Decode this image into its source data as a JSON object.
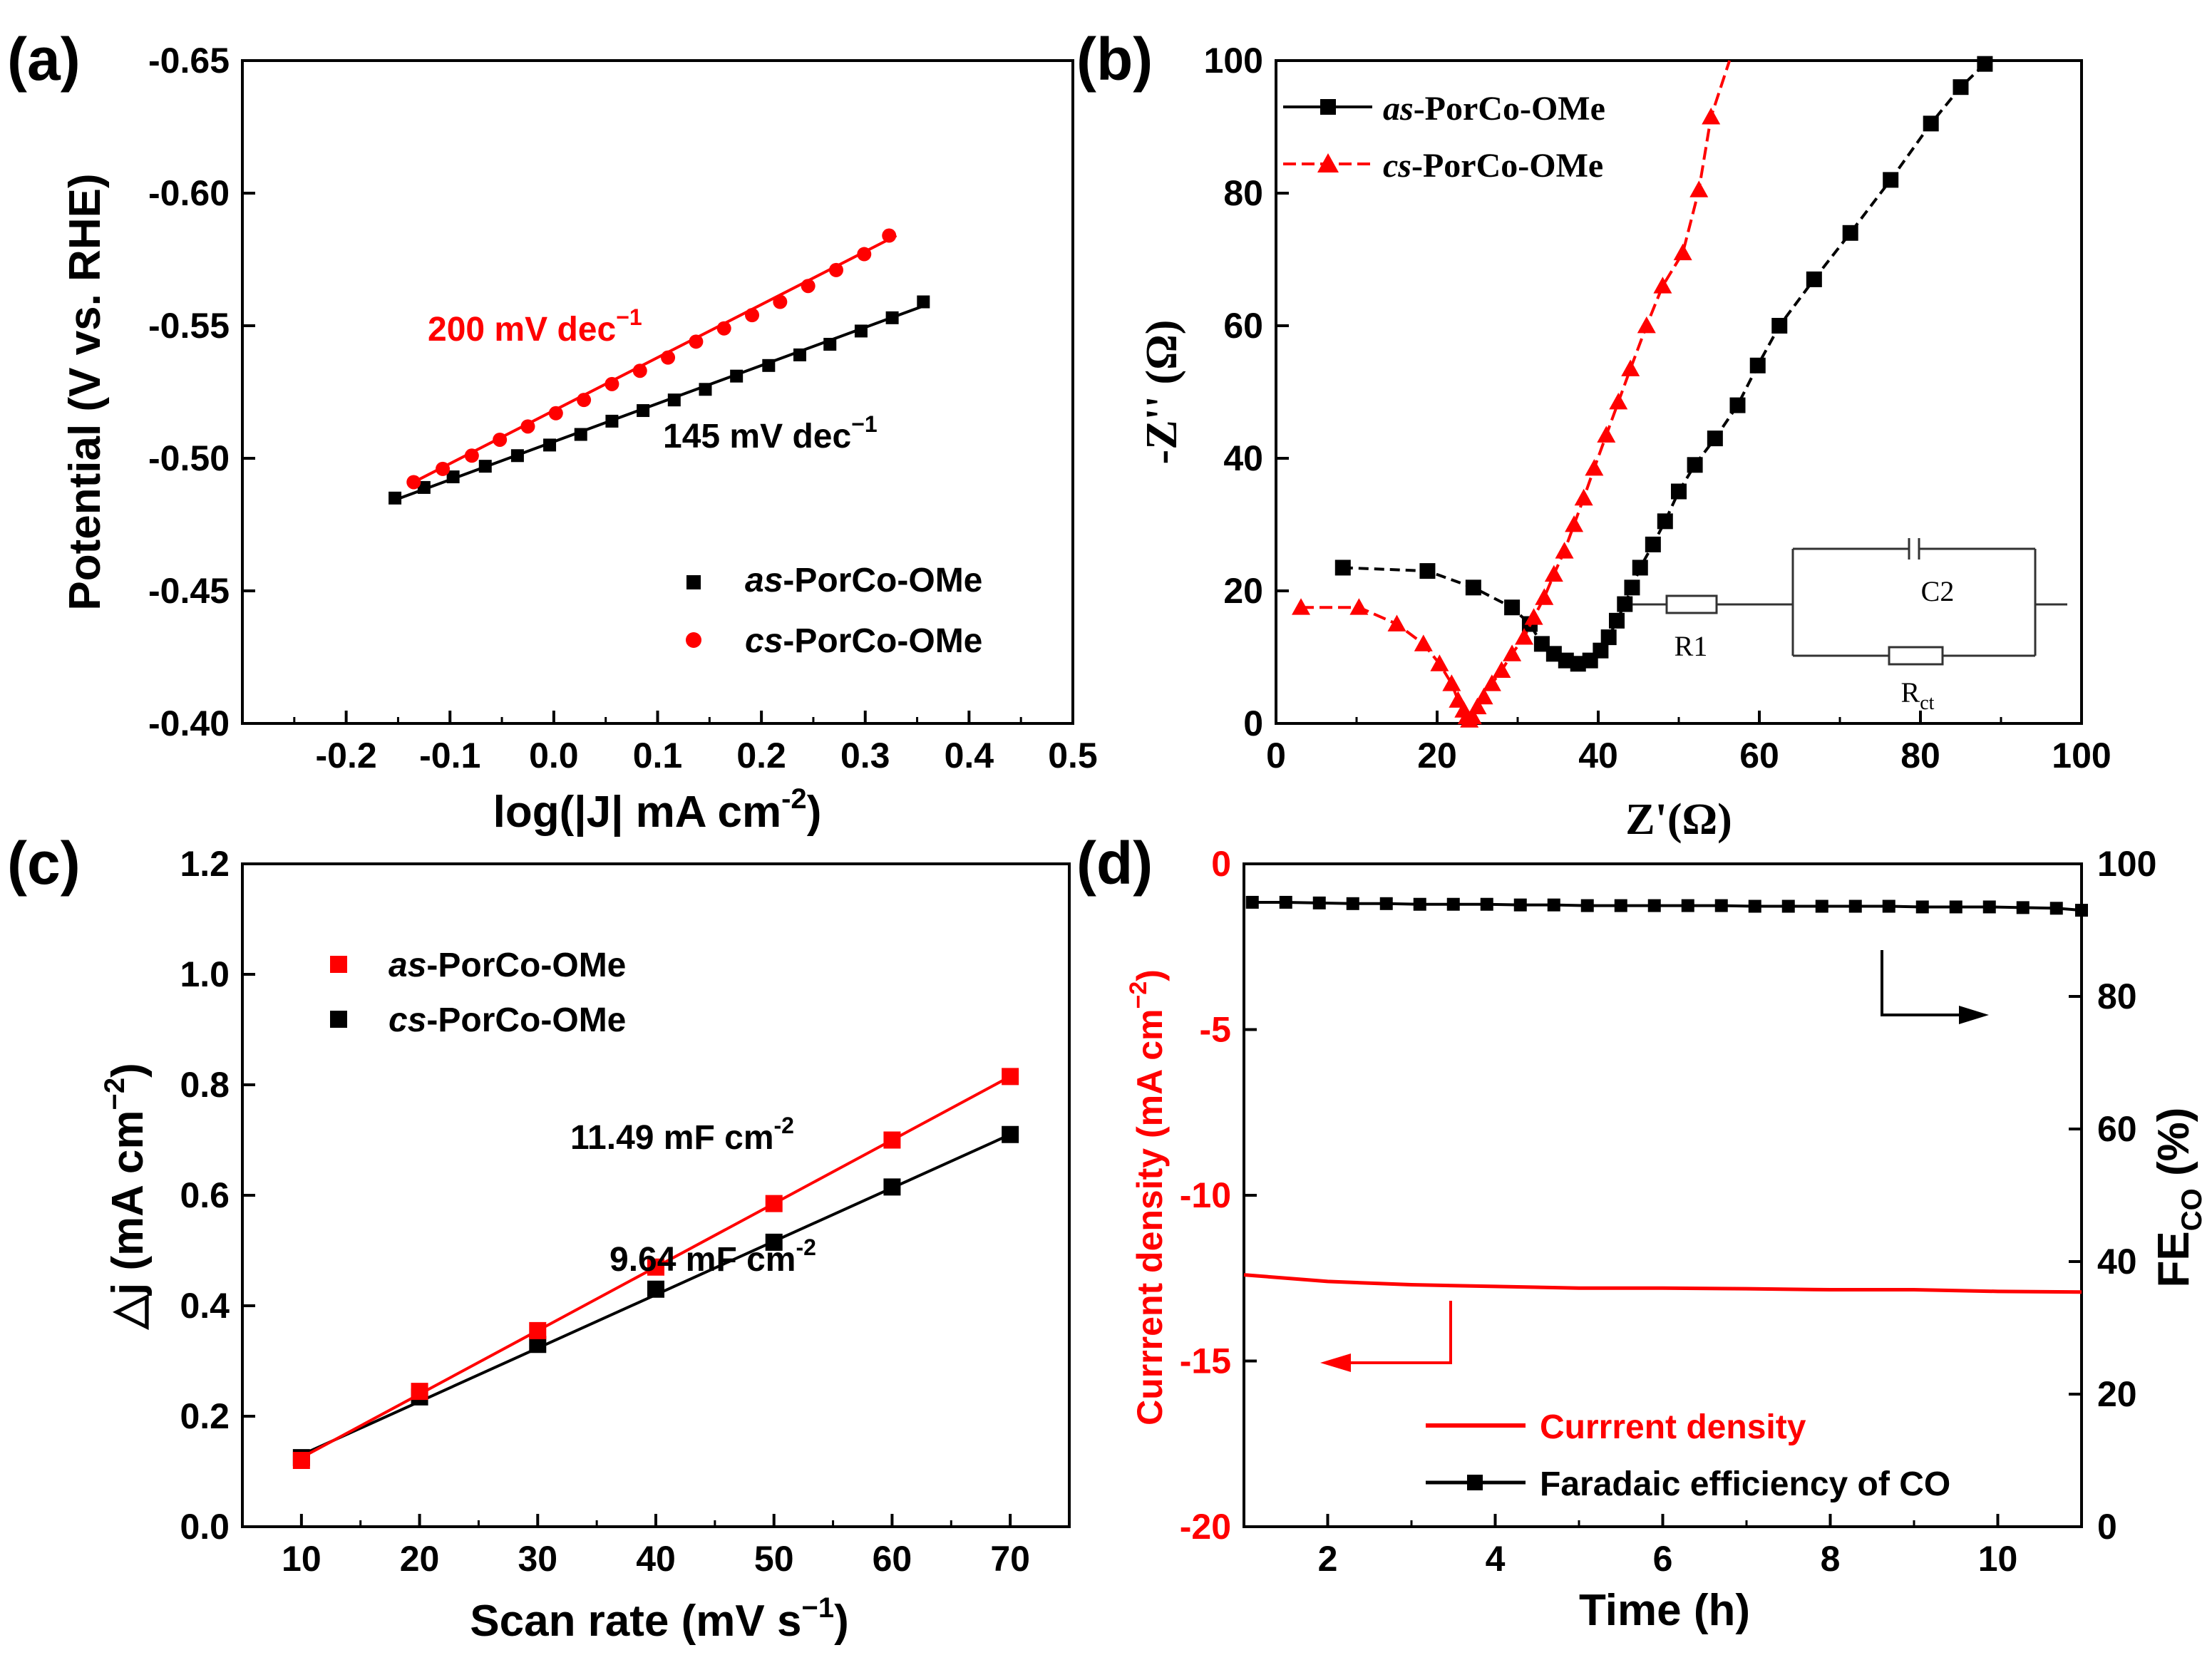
{
  "panel_letters": [
    "(a)",
    "(b)",
    "(c)",
    "(d)"
  ],
  "colors": {
    "black": "#000000",
    "red": "#ff0000"
  },
  "chart_data": [
    {
      "panel": "(a)",
      "type": "scatter",
      "xlabel": "log(|J| mA cm",
      "xlabel_sup": "-2",
      "xlabel_tail": ")",
      "ylabel": "Potential (V vs. RHE)",
      "xlim": [
        -0.3,
        0.5
      ],
      "ylim": [
        -0.4,
        -0.65
      ],
      "xticks": [
        "-0.2",
        "-0.1",
        "0.0",
        "0.1",
        "0.2",
        "0.3",
        "0.4",
        "0.5"
      ],
      "xtick_values": [
        -0.2,
        -0.1,
        0.0,
        0.1,
        0.2,
        0.3,
        0.4,
        0.5
      ],
      "yticks": [
        "-0.40",
        "-0.45",
        "-0.50",
        "-0.55",
        "-0.60",
        "-0.65"
      ],
      "ytick_values": [
        -0.4,
        -0.45,
        -0.5,
        -0.55,
        -0.6,
        -0.65
      ],
      "series": [
        {
          "name_italic": "as",
          "name_rest": "-PorCo-OMe",
          "color": "#000000",
          "marker": "square",
          "x": [
            -0.153,
            -0.125,
            -0.097,
            -0.066,
            -0.035,
            -0.004,
            0.026,
            0.056,
            0.086,
            0.116,
            0.146,
            0.176,
            0.207,
            0.237,
            0.266,
            0.296,
            0.326,
            0.356
          ],
          "y": [
            -0.485,
            -0.489,
            -0.493,
            -0.497,
            -0.501,
            -0.505,
            -0.509,
            -0.514,
            -0.518,
            -0.522,
            -0.526,
            -0.531,
            -0.535,
            -0.539,
            -0.543,
            -0.548,
            -0.553,
            -0.559
          ],
          "fit": {
            "x": [
              -0.155,
              0.36
            ],
            "y": [
              -0.484,
              -0.558
            ]
          }
        },
        {
          "name_italic": "cs",
          "name_rest": "-PorCo-OMe",
          "color": "#ff0000",
          "marker": "circle",
          "x": [
            -0.135,
            -0.107,
            -0.079,
            -0.052,
            -0.025,
            0.002,
            0.029,
            0.056,
            0.083,
            0.11,
            0.137,
            0.164,
            0.191,
            0.218,
            0.245,
            0.272,
            0.299,
            0.323
          ],
          "y": [
            -0.491,
            -0.496,
            -0.501,
            -0.507,
            -0.512,
            -0.517,
            -0.522,
            -0.528,
            -0.533,
            -0.538,
            -0.544,
            -0.549,
            -0.554,
            -0.559,
            -0.565,
            -0.571,
            -0.577,
            -0.584
          ],
          "fit": {
            "x": [
              -0.14,
              0.33
            ],
            "y": [
              -0.49,
              -0.584
            ]
          }
        }
      ],
      "annotations": [
        {
          "text": "200 mV dec",
          "sup": "−1",
          "color": "#ff0000"
        },
        {
          "text": "145 mV dec",
          "sup": "−1",
          "color": "#000000"
        }
      ]
    },
    {
      "panel": "(b)",
      "type": "line",
      "xlabel": "Z'(Ω)",
      "ylabel": "-Z'' (Ω)",
      "xlim": [
        0,
        100
      ],
      "ylim": [
        0,
        100
      ],
      "xticks": [
        "0",
        "20",
        "40",
        "60",
        "80",
        "100"
      ],
      "xtick_values": [
        0,
        20,
        40,
        60,
        80,
        100
      ],
      "yticks": [
        "0",
        "20",
        "40",
        "60",
        "80",
        "100"
      ],
      "ytick_values": [
        0,
        20,
        40,
        60,
        80,
        100
      ],
      "series": [
        {
          "name_italic": "as",
          "name_rest": "-PorCo-OMe",
          "color": "#000000",
          "marker": "square",
          "x": [
            8.3,
            18.8,
            24.5,
            29.3,
            31.5,
            33,
            34.5,
            36,
            37.5,
            39,
            40.3,
            41.3,
            42.3,
            43.3,
            44.2,
            45.2,
            46.8,
            48.3,
            50,
            52,
            54.5,
            57.3,
            59.8,
            62.5,
            66.8,
            71.3,
            76.3,
            81.3,
            85,
            88
          ],
          "y": [
            23.5,
            23,
            20.5,
            17.5,
            15,
            12,
            10.5,
            9.5,
            9,
            9.5,
            11,
            13,
            15.5,
            18,
            20.5,
            23.5,
            27,
            30.5,
            35,
            39,
            43,
            48,
            54,
            60,
            67,
            74,
            82,
            90.5,
            96,
            99.5
          ]
        },
        {
          "name_italic": "cs",
          "name_rest": "-PorCo-OMe",
          "color": "#ff0000",
          "marker": "triangle",
          "x": [
            3.1,
            10.3,
            15,
            18.3,
            20.3,
            21.8,
            22.6,
            23.3,
            23.7,
            24,
            24.4,
            25,
            25.8,
            26.8,
            28,
            29.3,
            30.8,
            32,
            33.3,
            34.5,
            35.8,
            37,
            38.2,
            39.5,
            41,
            42.5,
            44,
            46,
            48,
            50.5,
            52.5,
            54
          ],
          "y": [
            17.5,
            17.5,
            15,
            12,
            9,
            6,
            3.5,
            2,
            1,
            0.5,
            1,
            2.5,
            4,
            6,
            8,
            10.5,
            13,
            16,
            19,
            22.5,
            26,
            30,
            34,
            38.5,
            43.5,
            48.5,
            53.5,
            60,
            66,
            71,
            80.5,
            91.5
          ],
          "curve_extra": {
            "x": [
              56.3
            ],
            "y": [
              100
            ]
          }
        }
      ],
      "circuit": {
        "r1": "R1",
        "c2": "C2",
        "rct_main": "R",
        "rct_sub": "ct"
      }
    },
    {
      "panel": "(c)",
      "type": "line",
      "xlabel": "Scan rate (mV s",
      "xlabel_sup": "−1",
      "xlabel_tail": ")",
      "ylabel": "△j (mA cm",
      "ylabel_sup": "−2",
      "ylabel_tail": ")",
      "xlim": [
        5,
        75
      ],
      "ylim": [
        0,
        1.2
      ],
      "xticks": [
        "10",
        "20",
        "30",
        "40",
        "50",
        "60",
        "70"
      ],
      "xtick_values": [
        10,
        20,
        30,
        40,
        50,
        60,
        70
      ],
      "yticks": [
        "0.0",
        "0.2",
        "0.4",
        "0.6",
        "0.8",
        "1.0",
        "1.2"
      ],
      "ytick_values": [
        0,
        0.2,
        0.4,
        0.6,
        0.8,
        1.0,
        1.2
      ],
      "series": [
        {
          "name_italic": "as",
          "name_rest": "-PorCo-OMe",
          "color": "#ff0000",
          "marker": "square",
          "x": [
            10,
            20,
            30,
            40,
            50,
            60,
            70
          ],
          "values": [
            0.12,
            0.245,
            0.355,
            0.47,
            0.585,
            0.7,
            0.815
          ],
          "fit": {
            "x": [
              10,
              70
            ],
            "y": [
              0.125,
              0.815
            ]
          }
        },
        {
          "name_italic": "cs",
          "name_rest": "-PorCo-OMe",
          "color": "#000000",
          "marker": "square",
          "x": [
            10,
            20,
            30,
            40,
            50,
            60,
            70
          ],
          "values": [
            0.125,
            0.235,
            0.33,
            0.43,
            0.515,
            0.615,
            0.71
          ],
          "fit": {
            "x": [
              10,
              70
            ],
            "y": [
              0.13,
              0.71
            ]
          }
        }
      ],
      "annotations": [
        {
          "text": "11.49 mF cm",
          "sup": "-2"
        },
        {
          "text": "9.64 mF cm",
          "sup": "-2"
        }
      ]
    },
    {
      "panel": "(d)",
      "type": "line",
      "xlabel": "Time (h)",
      "ylabel_left": "Currrent density (mA cm",
      "ylabel_left_sup": "−2",
      "ylabel_left_tail": ")",
      "ylabel_right": "FE",
      "ylabel_right_sub": "CO",
      "ylabel_right_tail": " (%)",
      "xlim": [
        1,
        11
      ],
      "ylim_left": [
        -20,
        0
      ],
      "ylim_right": [
        0,
        100
      ],
      "xticks": [
        "2",
        "4",
        "6",
        "8",
        "10"
      ],
      "xtick_values": [
        2,
        4,
        6,
        8,
        10
      ],
      "yticks_left": [
        "-20",
        "-15",
        "-10",
        "-5",
        "0"
      ],
      "yticks_left_values": [
        -20,
        -15,
        -10,
        -5,
        0
      ],
      "yticks_right": [
        "0",
        "20",
        "40",
        "60",
        "80",
        "100"
      ],
      "yticks_right_values": [
        0,
        20,
        40,
        60,
        80,
        100
      ],
      "series": [
        {
          "name": "Currrent density",
          "color": "#ff0000",
          "axis": "left",
          "x": [
            1,
            2,
            3,
            4,
            5,
            6,
            7,
            8,
            9,
            10,
            11
          ],
          "values": [
            -12.4,
            -12.6,
            -12.7,
            -12.75,
            -12.8,
            -12.8,
            -12.82,
            -12.85,
            -12.85,
            -12.9,
            -12.92
          ]
        },
        {
          "name": "Faradaic efficiency of CO",
          "color": "#000000",
          "axis": "right",
          "marker": "square",
          "x": [
            1.1,
            1.5,
            1.9,
            2.3,
            2.7,
            3.1,
            3.5,
            3.9,
            4.3,
            4.7,
            5.1,
            5.5,
            5.9,
            6.3,
            6.7,
            7.1,
            7.5,
            7.9,
            8.3,
            8.7,
            9.1,
            9.5,
            9.9,
            10.3,
            10.7,
            11
          ],
          "values": [
            94.2,
            94.2,
            94.1,
            94.0,
            94.0,
            93.9,
            93.9,
            93.9,
            93.8,
            93.8,
            93.7,
            93.7,
            93.7,
            93.7,
            93.7,
            93.6,
            93.6,
            93.6,
            93.6,
            93.6,
            93.5,
            93.5,
            93.5,
            93.4,
            93.3,
            93.0
          ]
        }
      ]
    }
  ]
}
